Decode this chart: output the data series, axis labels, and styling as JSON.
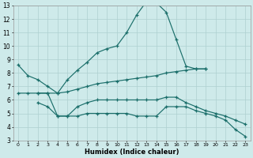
{
  "xlabel": "Humidex (Indice chaleur)",
  "bg_color": "#ceeaea",
  "line_color": "#1a6e6a",
  "grid_color": "#aed0d0",
  "xlim": [
    -0.5,
    23.5
  ],
  "ylim": [
    3,
    13
  ],
  "xticks": [
    0,
    1,
    2,
    3,
    4,
    5,
    6,
    7,
    8,
    9,
    10,
    11,
    12,
    13,
    14,
    15,
    16,
    17,
    18,
    19,
    20,
    21,
    22,
    23
  ],
  "yticks": [
    3,
    4,
    5,
    6,
    7,
    8,
    9,
    10,
    11,
    12,
    13
  ],
  "line1_x": [
    0,
    1,
    2,
    3,
    4,
    5,
    6,
    7,
    8,
    9,
    10,
    11,
    12,
    13,
    14,
    15,
    16,
    17,
    18,
    19
  ],
  "line1_y": [
    8.6,
    7.8,
    7.5,
    7.0,
    6.5,
    7.5,
    8.2,
    8.8,
    9.5,
    9.8,
    10.0,
    11.0,
    12.3,
    13.3,
    13.2,
    12.5,
    10.5,
    8.5,
    8.3,
    8.3
  ],
  "line2_x": [
    0,
    1,
    2,
    3,
    4,
    5,
    6,
    7,
    8,
    9,
    10,
    11,
    12,
    13,
    14,
    15,
    16,
    17,
    18,
    19
  ],
  "line2_y": [
    6.5,
    6.5,
    6.5,
    6.5,
    6.5,
    6.6,
    6.8,
    7.0,
    7.2,
    7.3,
    7.4,
    7.5,
    7.6,
    7.7,
    7.8,
    8.0,
    8.1,
    8.2,
    8.3,
    8.3
  ],
  "line3_x": [
    2,
    3,
    4,
    5,
    6,
    7,
    8,
    9,
    10,
    11,
    12,
    13,
    14,
    15,
    16,
    17,
    18,
    19,
    20,
    21,
    22,
    23
  ],
  "line3_y": [
    6.5,
    6.5,
    4.8,
    4.8,
    5.5,
    5.8,
    6.0,
    6.0,
    6.0,
    6.0,
    6.0,
    6.0,
    6.0,
    6.2,
    6.2,
    5.8,
    5.5,
    5.2,
    5.0,
    4.8,
    4.5,
    4.2
  ],
  "line4_x": [
    2,
    3,
    4,
    5,
    6,
    7,
    8,
    9,
    10,
    11,
    12,
    13,
    14,
    15,
    16,
    17,
    18,
    19,
    20,
    21,
    22,
    23
  ],
  "line4_y": [
    5.8,
    5.5,
    4.8,
    4.8,
    4.8,
    5.0,
    5.0,
    5.0,
    5.0,
    5.0,
    4.8,
    4.8,
    4.8,
    5.5,
    5.5,
    5.5,
    5.2,
    5.0,
    4.8,
    4.5,
    3.8,
    3.3
  ]
}
